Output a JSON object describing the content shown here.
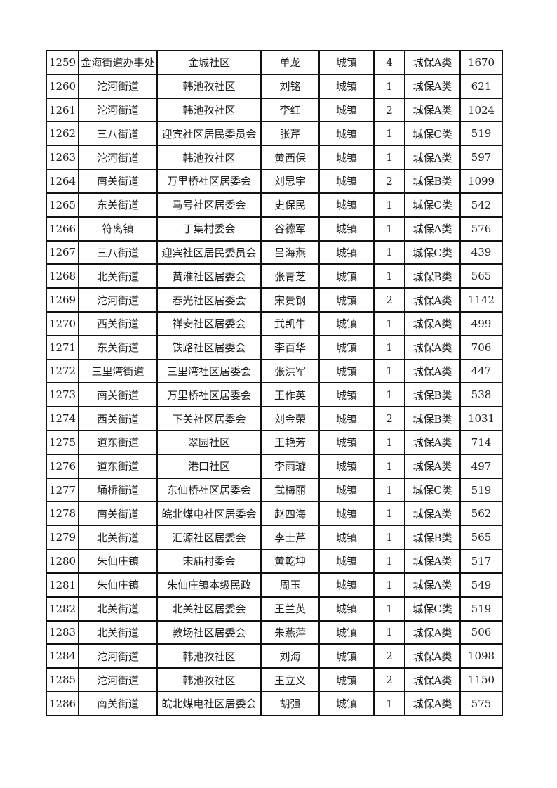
{
  "table": {
    "rows": [
      [
        "1259",
        "金海街道办事处",
        "金城社区",
        "单龙",
        "城镇",
        "4",
        "城保A类",
        "1670"
      ],
      [
        "1260",
        "沱河街道",
        "韩池孜社区",
        "刘铭",
        "城镇",
        "1",
        "城保A类",
        "621"
      ],
      [
        "1261",
        "沱河街道",
        "韩池孜社区",
        "李红",
        "城镇",
        "2",
        "城保A类",
        "1024"
      ],
      [
        "1262",
        "三八街道",
        "迎宾社区居民委员会",
        "张芹",
        "城镇",
        "1",
        "城保C类",
        "519"
      ],
      [
        "1263",
        "沱河街道",
        "韩池孜社区",
        "黄西保",
        "城镇",
        "1",
        "城保A类",
        "597"
      ],
      [
        "1264",
        "南关街道",
        "万里桥社区居委会",
        "刘思宇",
        "城镇",
        "2",
        "城保B类",
        "1099"
      ],
      [
        "1265",
        "东关街道",
        "马号社区居委会",
        "史保民",
        "城镇",
        "1",
        "城保C类",
        "542"
      ],
      [
        "1266",
        "符离镇",
        "丁集村委会",
        "谷德军",
        "城镇",
        "1",
        "城保A类",
        "576"
      ],
      [
        "1267",
        "三八街道",
        "迎宾社区居民委员会",
        "吕海燕",
        "城镇",
        "1",
        "城保C类",
        "439"
      ],
      [
        "1268",
        "北关街道",
        "黄淮社区居委会",
        "张青芝",
        "城镇",
        "1",
        "城保B类",
        "565"
      ],
      [
        "1269",
        "沱河街道",
        "春光社区居委会",
        "宋贵钢",
        "城镇",
        "2",
        "城保A类",
        "1142"
      ],
      [
        "1270",
        "西关街道",
        "祥安社区居委会",
        "武凯牛",
        "城镇",
        "1",
        "城保A类",
        "499"
      ],
      [
        "1271",
        "东关街道",
        "铁路社区居委会",
        "李百华",
        "城镇",
        "1",
        "城保A类",
        "706"
      ],
      [
        "1272",
        "三里湾街道",
        "三里湾社区居委会",
        "张洪军",
        "城镇",
        "1",
        "城保A类",
        "447"
      ],
      [
        "1273",
        "南关街道",
        "万里桥社区居委会",
        "王作英",
        "城镇",
        "1",
        "城保B类",
        "538"
      ],
      [
        "1274",
        "西关街道",
        "下关社区居委会",
        "刘金荣",
        "城镇",
        "2",
        "城保B类",
        "1031"
      ],
      [
        "1275",
        "道东街道",
        "翠园社区",
        "王艳芳",
        "城镇",
        "1",
        "城保A类",
        "714"
      ],
      [
        "1276",
        "道东街道",
        "港口社区",
        "李雨璇",
        "城镇",
        "1",
        "城保A类",
        "497"
      ],
      [
        "1277",
        "埇桥街道",
        "东仙桥社区居委会",
        "武梅丽",
        "城镇",
        "1",
        "城保C类",
        "519"
      ],
      [
        "1278",
        "南关街道",
        "皖北煤电社区居委会",
        "赵四海",
        "城镇",
        "1",
        "城保A类",
        "562"
      ],
      [
        "1279",
        "北关街道",
        "汇源社区居委会",
        "李士芹",
        "城镇",
        "1",
        "城保B类",
        "565"
      ],
      [
        "1280",
        "朱仙庄镇",
        "宋庙村委会",
        "黄乾坤",
        "城镇",
        "1",
        "城保A类",
        "517"
      ],
      [
        "1281",
        "朱仙庄镇",
        "朱仙庄镇本级民政",
        "周玉",
        "城镇",
        "1",
        "城保A类",
        "549"
      ],
      [
        "1282",
        "北关街道",
        "北关社区居委会",
        "王兰英",
        "城镇",
        "1",
        "城保C类",
        "519"
      ],
      [
        "1283",
        "北关街道",
        "教场社区居委会",
        "朱燕萍",
        "城镇",
        "1",
        "城保A类",
        "506"
      ],
      [
        "1284",
        "沱河街道",
        "韩池孜社区",
        "刘海",
        "城镇",
        "2",
        "城保A类",
        "1098"
      ],
      [
        "1285",
        "沱河街道",
        "韩池孜社区",
        "王立义",
        "城镇",
        "2",
        "城保A类",
        "1150"
      ],
      [
        "1286",
        "南关街道",
        "皖北煤电社区居委会",
        "胡强",
        "城镇",
        "1",
        "城保A类",
        "575"
      ]
    ]
  }
}
